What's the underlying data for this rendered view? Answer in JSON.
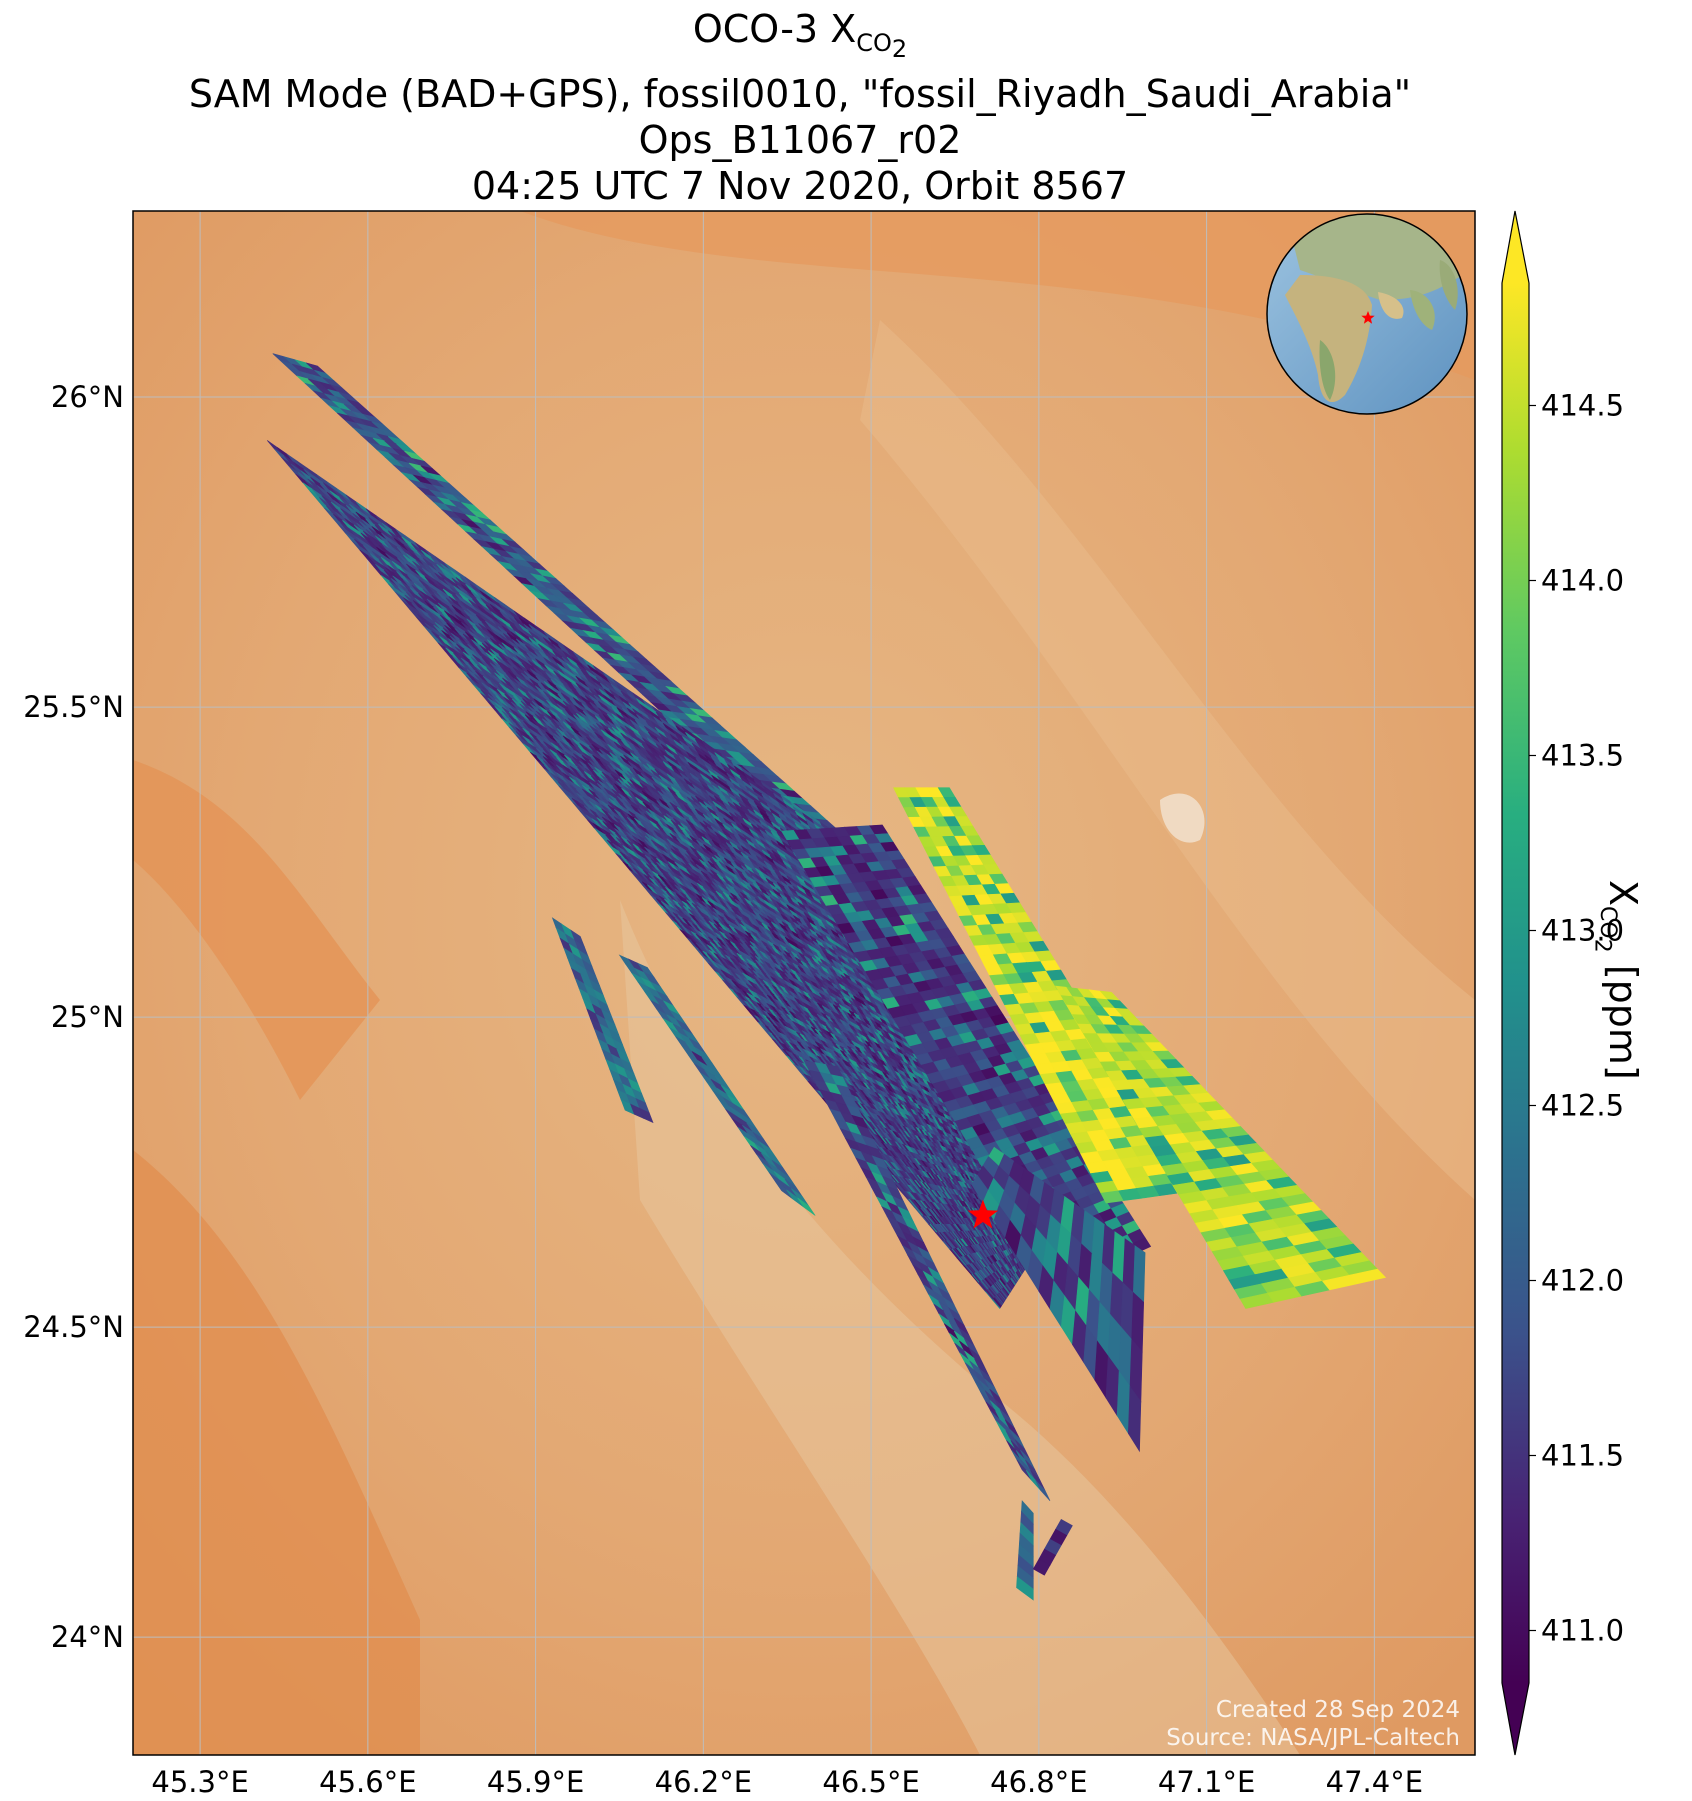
{
  "title": {
    "line1_prefix": "OCO-3 X",
    "line1_sub": "CO",
    "line1_sub2": "2",
    "line2": "SAM Mode (BAD+GPS), fossil0010, \"fossil_Riyadh_Saudi_Arabia\"",
    "line3": "Ops_B11067_r02",
    "line4": "04:25 UTC 7 Nov 2020, Orbit 8567"
  },
  "map": {
    "lon_range": [
      45.18,
      47.58
    ],
    "lat_range": [
      23.81,
      26.3
    ],
    "x_ticks": [
      "45.3°E",
      "45.6°E",
      "45.9°E",
      "46.2°E",
      "46.5°E",
      "46.8°E",
      "47.1°E",
      "47.4°E"
    ],
    "x_tick_values": [
      45.3,
      45.6,
      45.9,
      46.2,
      46.5,
      46.8,
      47.1,
      47.4
    ],
    "y_ticks": [
      "26°N",
      "25.5°N",
      "25°N",
      "24.5°N",
      "24°N"
    ],
    "y_tick_values": [
      26.0,
      25.5,
      25.0,
      24.5,
      24.0
    ],
    "gridlines": true,
    "target_marker": {
      "name": "red-star",
      "lon": 46.7,
      "lat": 24.68,
      "color": "#ff0000"
    },
    "credit_line1": "Created 28 Sep 2024",
    "credit_line2": "Source: NASA/JPL-Caltech",
    "inset_globe": {
      "marker_color": "#ff0000"
    }
  },
  "colorbar": {
    "label_prefix": "X",
    "label_sub": "CO",
    "label_sub2": "2",
    "label_suffix": " [ppm]",
    "ticks": [
      "411.0",
      "411.5",
      "412.0",
      "412.5",
      "413.0",
      "413.5",
      "414.0",
      "414.5"
    ],
    "tick_values": [
      411.0,
      411.5,
      412.0,
      412.5,
      413.0,
      413.5,
      414.0,
      414.5
    ],
    "vmin": 410.85,
    "vmax": 414.85,
    "colormap": "viridis",
    "extend": "both"
  },
  "chart_data": {
    "type": "heatmap",
    "variable": "XCO2",
    "units": "ppm",
    "swaths": [
      {
        "name": "swath-1",
        "corners": [
          [
            45.43,
            26.07
          ],
          [
            45.51,
            26.05
          ],
          [
            46.48,
            25.27
          ],
          [
            46.38,
            25.28
          ]
        ],
        "low": 411.1,
        "high": 413.6,
        "dominant": 411.8
      },
      {
        "name": "swath-2",
        "corners": [
          [
            45.42,
            25.93
          ],
          [
            46.48,
            25.27
          ],
          [
            46.78,
            24.6
          ],
          [
            46.73,
            24.53
          ]
        ],
        "low": 411.0,
        "high": 413.0,
        "dominant": 411.6
      },
      {
        "name": "swath-3",
        "corners": [
          [
            46.34,
            25.3
          ],
          [
            46.52,
            25.31
          ],
          [
            47.0,
            24.63
          ],
          [
            46.83,
            24.56
          ]
        ],
        "low": 410.9,
        "high": 413.5,
        "dominant": 411.5
      },
      {
        "name": "swath-4",
        "corners": [
          [
            46.54,
            25.37
          ],
          [
            46.64,
            25.37
          ],
          [
            47.08,
            24.72
          ],
          [
            46.92,
            24.7
          ]
        ],
        "low": 413.0,
        "high": 414.85,
        "dominant": 414.7
      },
      {
        "name": "swath-5",
        "corners": [
          [
            46.83,
            25.05
          ],
          [
            46.93,
            25.04
          ],
          [
            47.42,
            24.58
          ],
          [
            47.17,
            24.53
          ]
        ],
        "low": 413.0,
        "high": 414.85,
        "dominant": 414.5
      },
      {
        "name": "swath-6",
        "corners": [
          [
            46.05,
            25.1
          ],
          [
            46.1,
            25.08
          ],
          [
            46.4,
            24.68
          ],
          [
            46.34,
            24.72
          ]
        ],
        "low": 411.3,
        "high": 413.4,
        "dominant": 412.2
      },
      {
        "name": "swath-7",
        "corners": [
          [
            46.38,
            24.93
          ],
          [
            46.44,
            24.92
          ],
          [
            46.82,
            24.22
          ],
          [
            46.77,
            24.27
          ]
        ],
        "low": 411.0,
        "high": 413.3,
        "dominant": 411.7
      },
      {
        "name": "swath-8",
        "corners": [
          [
            45.93,
            25.16
          ],
          [
            45.98,
            25.13
          ],
          [
            46.11,
            24.83
          ],
          [
            46.06,
            24.85
          ]
        ],
        "low": 411.5,
        "high": 413.0,
        "dominant": 412.3
      },
      {
        "name": "swath-9",
        "corners": [
          [
            46.72,
            24.79
          ],
          [
            46.99,
            24.62
          ],
          [
            46.98,
            24.3
          ],
          [
            46.68,
            24.73
          ]
        ],
        "low": 411.0,
        "high": 413.5,
        "dominant": 411.6
      },
      {
        "name": "swath-10",
        "corners": [
          [
            46.77,
            24.22
          ],
          [
            46.79,
            24.2
          ],
          [
            46.79,
            24.06
          ],
          [
            46.76,
            24.08
          ]
        ],
        "low": 411.2,
        "high": 413.0,
        "dominant": 412.0
      },
      {
        "name": "swath-11",
        "corners": [
          [
            46.84,
            24.19
          ],
          [
            46.86,
            24.18
          ],
          [
            46.81,
            24.1
          ],
          [
            46.79,
            24.11
          ]
        ],
        "low": 411.0,
        "high": 412.5,
        "dominant": 411.4
      }
    ]
  }
}
